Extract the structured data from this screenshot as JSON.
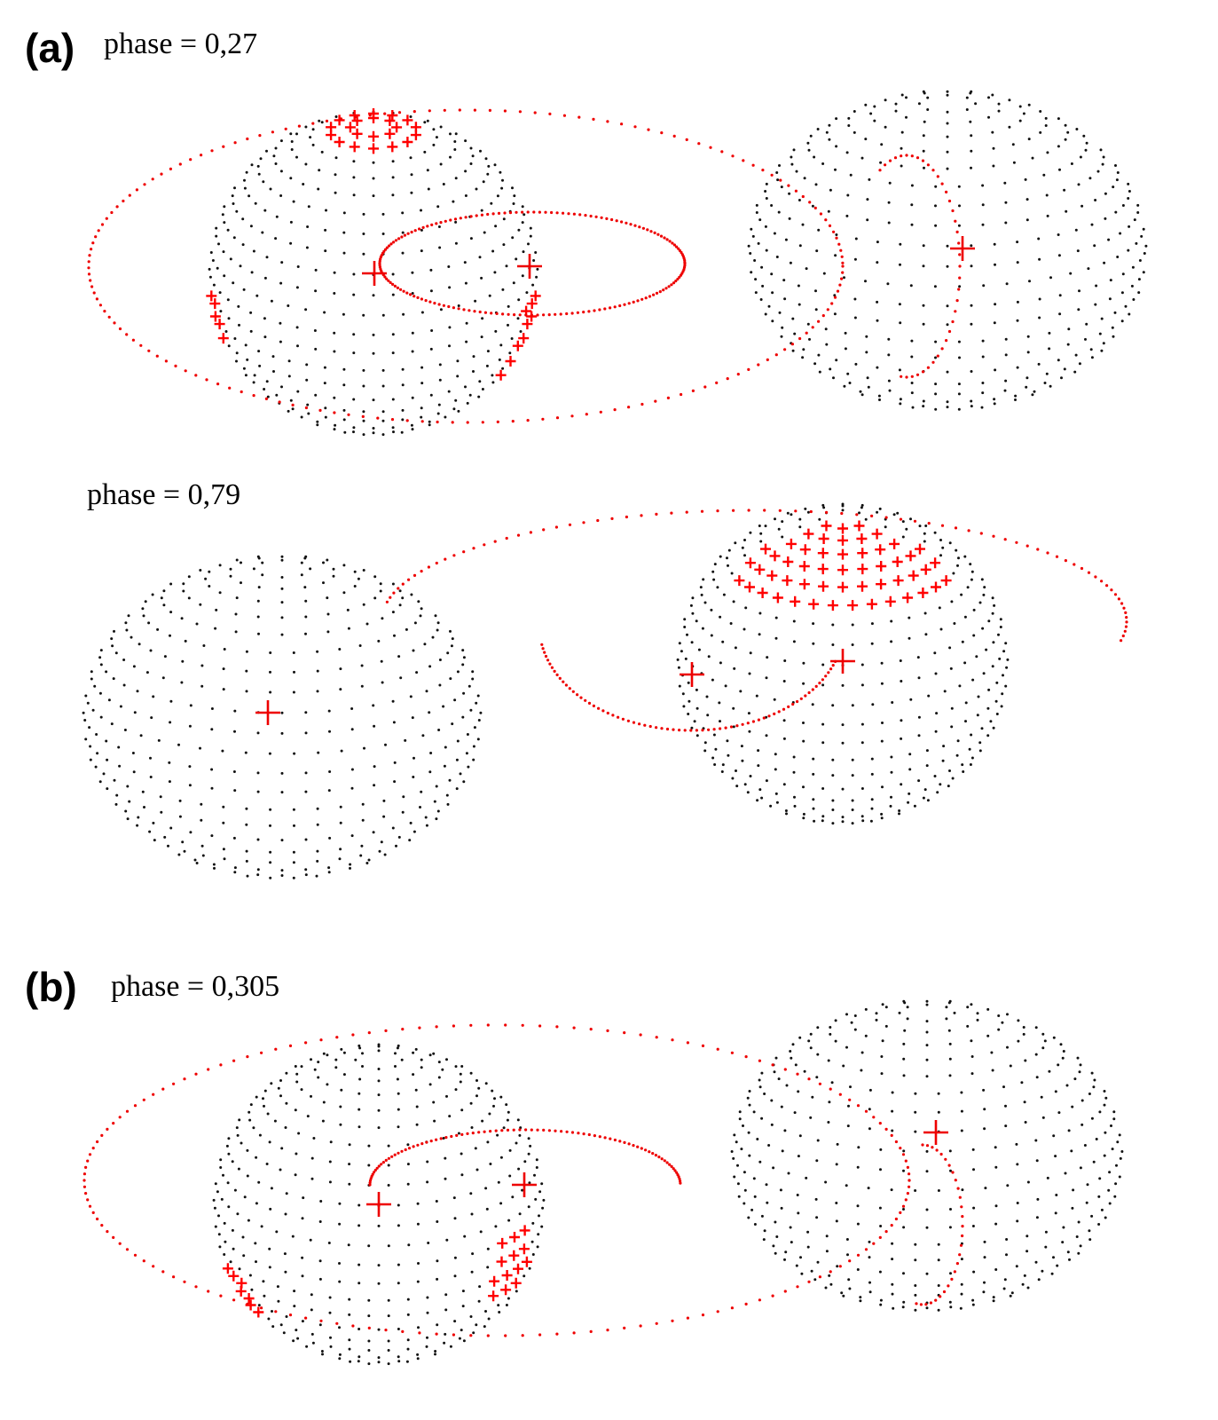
{
  "panel_a": {
    "label": "(a)",
    "frames": [
      {
        "caption": "phase = 0,27"
      },
      {
        "caption": "phase = 0,79"
      }
    ]
  },
  "panel_b": {
    "label": "(b)",
    "frames": [
      {
        "caption": "phase = 0,305"
      }
    ]
  }
}
